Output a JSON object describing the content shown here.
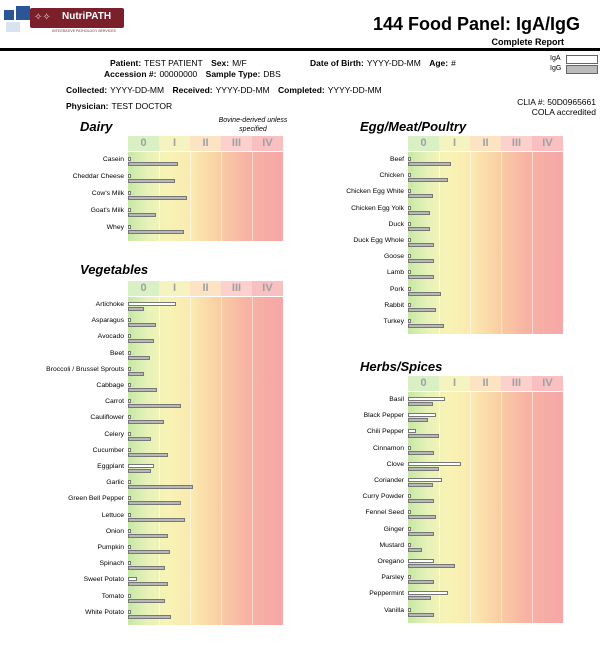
{
  "header": {
    "brand": "NutriPATH",
    "tagline": "INTEGRATIVE PATHOLOGY SERVICES",
    "title": "144 Food Panel: IgA/IgG",
    "subtitle": "Complete Report"
  },
  "patient": {
    "patient_label": "Patient:",
    "patient_value": "TEST PATIENT",
    "sex_label": "Sex:",
    "sex_value": "M/F",
    "dob_label": "Date of Birth:",
    "dob_value": "YYYY-DD-MM",
    "age_label": "Age:",
    "age_value": "#",
    "accession_label": "Accession #:",
    "accession_value": "00000000",
    "sample_label": "Sample Type:",
    "sample_value": "DBS",
    "collected_label": "Collected:",
    "collected_value": "YYYY-DD-MM",
    "received_label": "Received:",
    "received_value": "YYYY-DD-MM",
    "completed_label": "Completed:",
    "completed_value": "YYYY-DD-MM",
    "physician_label": "Physician:",
    "physician_value": "TEST DOCTOR"
  },
  "legend": {
    "iga": "IgA",
    "igg": "IgG"
  },
  "clia": {
    "line1": "CLIA #: 50D0965661",
    "line2": "COLA accredited"
  },
  "classes": [
    "0",
    "I",
    "II",
    "III",
    "IV"
  ],
  "colors": {
    "iga_fill": "#ffffff",
    "igg_fill": "#b7b7b7",
    "class0": "#d9f0c4",
    "class4": "#f8c0c0"
  },
  "panels": {
    "dairy": {
      "title": "Dairy",
      "note": "Bovine-derived unless specified",
      "items": [
        {
          "name": "Casein",
          "iga": 0.0,
          "igg": 1.6
        },
        {
          "name": "Cheddar Cheese",
          "iga": 0.0,
          "igg": 1.5
        },
        {
          "name": "Cow's Milk",
          "iga": 0.0,
          "igg": 1.9
        },
        {
          "name": "Goat's Milk",
          "iga": 0.0,
          "igg": 0.9
        },
        {
          "name": "Whey",
          "iga": 0.0,
          "igg": 1.8
        }
      ]
    },
    "vegetables": {
      "title": "Vegetables",
      "items": [
        {
          "name": "Artichoke",
          "iga": 1.55,
          "igg": 0.5
        },
        {
          "name": "Asparagus",
          "iga": 0.0,
          "igg": 0.9
        },
        {
          "name": "Avocado",
          "iga": 0.0,
          "igg": 0.85
        },
        {
          "name": "Beet",
          "iga": 0.0,
          "igg": 0.7
        },
        {
          "name": "Broccoli / Brussel Sprouts",
          "iga": 0.0,
          "igg": 0.5
        },
        {
          "name": "Cabbage",
          "iga": 0.0,
          "igg": 0.95
        },
        {
          "name": "Carrot",
          "iga": 0.0,
          "igg": 1.7
        },
        {
          "name": "Cauliflower",
          "iga": 0.0,
          "igg": 1.15
        },
        {
          "name": "Celery",
          "iga": 0.0,
          "igg": 0.75
        },
        {
          "name": "Cucumber",
          "iga": 0.0,
          "igg": 1.3
        },
        {
          "name": "Eggplant",
          "iga": 0.85,
          "igg": 0.75
        },
        {
          "name": "Garlic",
          "iga": 0.0,
          "igg": 2.1
        },
        {
          "name": "Green Bell Pepper",
          "iga": 0.0,
          "igg": 1.7
        },
        {
          "name": "Lettuce",
          "iga": 0.0,
          "igg": 1.85
        },
        {
          "name": "Onion",
          "iga": 0.0,
          "igg": 1.3
        },
        {
          "name": "Pumpkin",
          "iga": 0.0,
          "igg": 1.35
        },
        {
          "name": "Spinach",
          "iga": 0.0,
          "igg": 1.2
        },
        {
          "name": "Sweet Potato",
          "iga": 0.3,
          "igg": 1.3
        },
        {
          "name": "Tomato",
          "iga": 0.0,
          "igg": 1.2
        },
        {
          "name": "White Potato",
          "iga": 0.0,
          "igg": 1.4
        }
      ]
    },
    "egg_meat_poultry": {
      "title": "Egg/Meat/Poultry",
      "items": [
        {
          "name": "Beef",
          "iga": 0.0,
          "igg": 1.4
        },
        {
          "name": "Chicken",
          "iga": 0.0,
          "igg": 1.3
        },
        {
          "name": "Chicken Egg White",
          "iga": 0.0,
          "igg": 0.8
        },
        {
          "name": "Chicken Egg Yolk",
          "iga": 0.0,
          "igg": 0.7
        },
        {
          "name": "Duck",
          "iga": 0.0,
          "igg": 0.7
        },
        {
          "name": "Duck Egg Whole",
          "iga": 0.0,
          "igg": 0.85
        },
        {
          "name": "Goose",
          "iga": 0.0,
          "igg": 0.85
        },
        {
          "name": "Lamb",
          "iga": 0.0,
          "igg": 0.85
        },
        {
          "name": "Pork",
          "iga": 0.0,
          "igg": 1.05
        },
        {
          "name": "Rabbit",
          "iga": 0.0,
          "igg": 0.9
        },
        {
          "name": "Turkey",
          "iga": 0.0,
          "igg": 1.15
        }
      ]
    },
    "herbs_spices": {
      "title": "Herbs/Spices",
      "items": [
        {
          "name": "Basil",
          "iga": 1.2,
          "igg": 0.8
        },
        {
          "name": "Black Pepper",
          "iga": 0.9,
          "igg": 0.65
        },
        {
          "name": "Chili Pepper",
          "iga": 0.25,
          "igg": 1.0
        },
        {
          "name": "Cinnamon",
          "iga": 0.0,
          "igg": 0.85
        },
        {
          "name": "Clove",
          "iga": 1.7,
          "igg": 1.0
        },
        {
          "name": "Coriander",
          "iga": 1.1,
          "igg": 0.8
        },
        {
          "name": "Curry Powder",
          "iga": 0.0,
          "igg": 0.85
        },
        {
          "name": "Fennel Seed",
          "iga": 0.0,
          "igg": 0.9
        },
        {
          "name": "Ginger",
          "iga": 0.0,
          "igg": 0.85
        },
        {
          "name": "Mustard",
          "iga": 0.0,
          "igg": 0.45
        },
        {
          "name": "Oregano",
          "iga": 0.85,
          "igg": 1.5
        },
        {
          "name": "Parsley",
          "iga": 0.0,
          "igg": 0.85
        },
        {
          "name": "Peppermint",
          "iga": 1.3,
          "igg": 0.75
        },
        {
          "name": "Vanilla",
          "iga": 0.0,
          "igg": 0.85
        }
      ]
    }
  }
}
